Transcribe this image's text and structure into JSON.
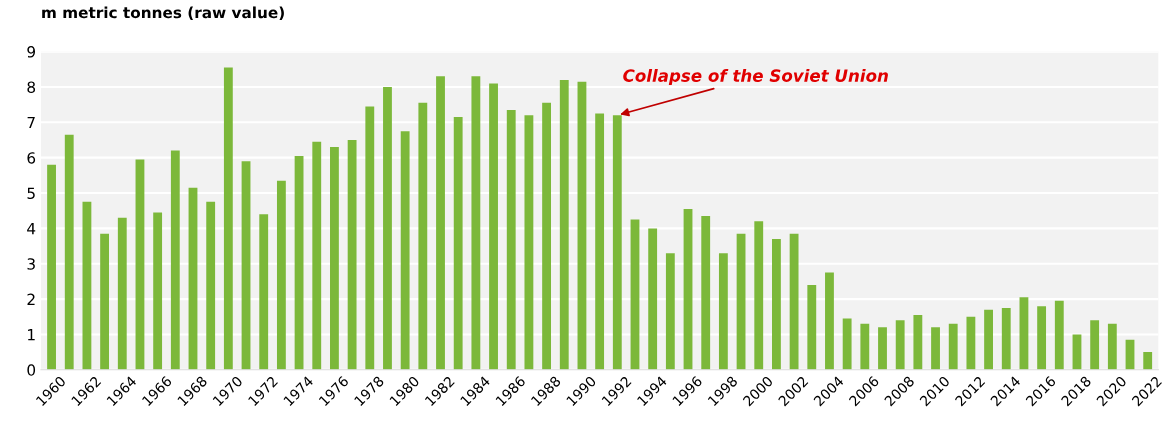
{
  "chart_data": {
    "type": "bar",
    "ylabel": "m metric tonnes (raw value)",
    "categories": [
      "1960",
      null,
      "1962",
      null,
      "1964",
      null,
      "1966",
      null,
      "1968",
      null,
      "1970",
      null,
      "1972",
      null,
      "1974",
      null,
      "1976",
      null,
      "1978",
      null,
      "1980",
      null,
      "1982",
      null,
      "1984",
      null,
      "1986",
      null,
      "1988",
      null,
      "1990",
      null,
      "1992",
      null,
      "1994",
      null,
      "1996",
      null,
      "1998",
      null,
      "2000",
      null,
      "2002",
      null,
      "2004",
      null,
      "2006",
      null,
      "2008",
      null,
      "2010",
      null,
      "2012",
      null,
      "2014",
      null,
      "2016",
      null,
      "2018",
      null,
      "2020",
      null,
      "2022"
    ],
    "values": [
      5.8,
      6.65,
      4.75,
      3.85,
      4.3,
      5.95,
      4.45,
      6.2,
      5.15,
      4.75,
      8.55,
      5.9,
      4.4,
      5.35,
      6.05,
      6.45,
      6.3,
      6.5,
      7.45,
      8.0,
      6.75,
      7.55,
      8.3,
      7.15,
      8.3,
      8.1,
      7.35,
      7.2,
      7.55,
      8.2,
      8.15,
      7.25,
      7.2,
      4.25,
      4.0,
      3.3,
      4.55,
      4.35,
      3.3,
      3.85,
      4.2,
      3.7,
      3.85,
      2.4,
      2.75,
      1.45,
      1.3,
      1.2,
      1.4,
      1.55,
      1.2,
      1.3,
      1.5,
      1.7,
      1.75,
      2.05,
      1.8,
      1.95,
      1.0,
      1.4,
      1.3,
      0.85,
      0.5
    ],
    "color": "#7cb83a",
    "ylim": [
      0,
      9
    ],
    "yticks": [
      0,
      1,
      2,
      3,
      4,
      5,
      6,
      7,
      8,
      9
    ],
    "grid": "y",
    "annotations": [
      {
        "text": "Collapse of the Soviet Union",
        "x": "1992",
        "y": 7.2
      }
    ]
  }
}
